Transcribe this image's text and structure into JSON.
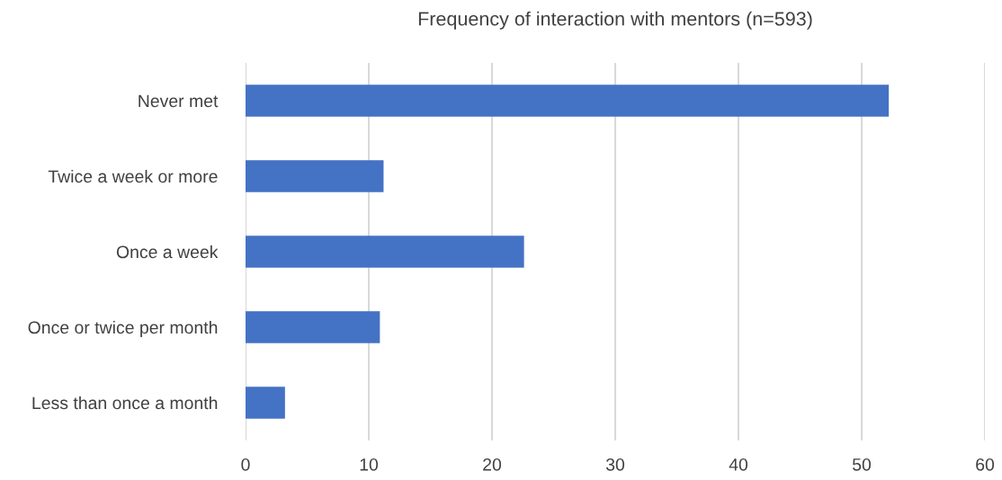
{
  "chart_data": {
    "type": "bar",
    "orientation": "horizontal",
    "title": "Frequency of interaction with mentors (n=593)",
    "categories": [
      "Never met",
      "Twice a week or more",
      "Once a week",
      "Once or twice per month",
      "Less than once a month"
    ],
    "values": [
      52.2,
      11.2,
      22.6,
      10.9,
      3.2
    ],
    "color": "#4472c4",
    "xlim": [
      0,
      60
    ],
    "xticks": [
      0,
      10,
      20,
      30,
      40,
      50,
      60
    ],
    "grid": "x",
    "legend": false
  }
}
